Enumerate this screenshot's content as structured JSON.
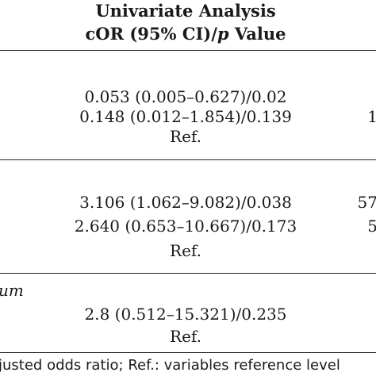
{
  "header": {
    "line1": "Univariate Analysis",
    "line2_prefix": "cOR (95% CI)/",
    "line2_p": "p",
    "line2_suffix": " Value"
  },
  "groups": [
    {
      "rows": [
        "0.053 (0.005–0.627)/0.02",
        "0.148 (0.012–1.854)/0.139",
        "Ref."
      ],
      "right_edge": [
        "",
        "1",
        ""
      ]
    },
    {
      "rows": [
        "3.106 (1.062–9.082)/0.038",
        "2.640 (0.653–10.667)/0.173",
        "Ref."
      ],
      "right_edge": [
        "57",
        "5",
        ""
      ]
    },
    {
      "label": "um",
      "rows": [
        "2.8 (0.512–15.321)/0.235",
        "Ref."
      ]
    }
  ],
  "footnote": "justed odds ratio; Ref.: variables reference level"
}
